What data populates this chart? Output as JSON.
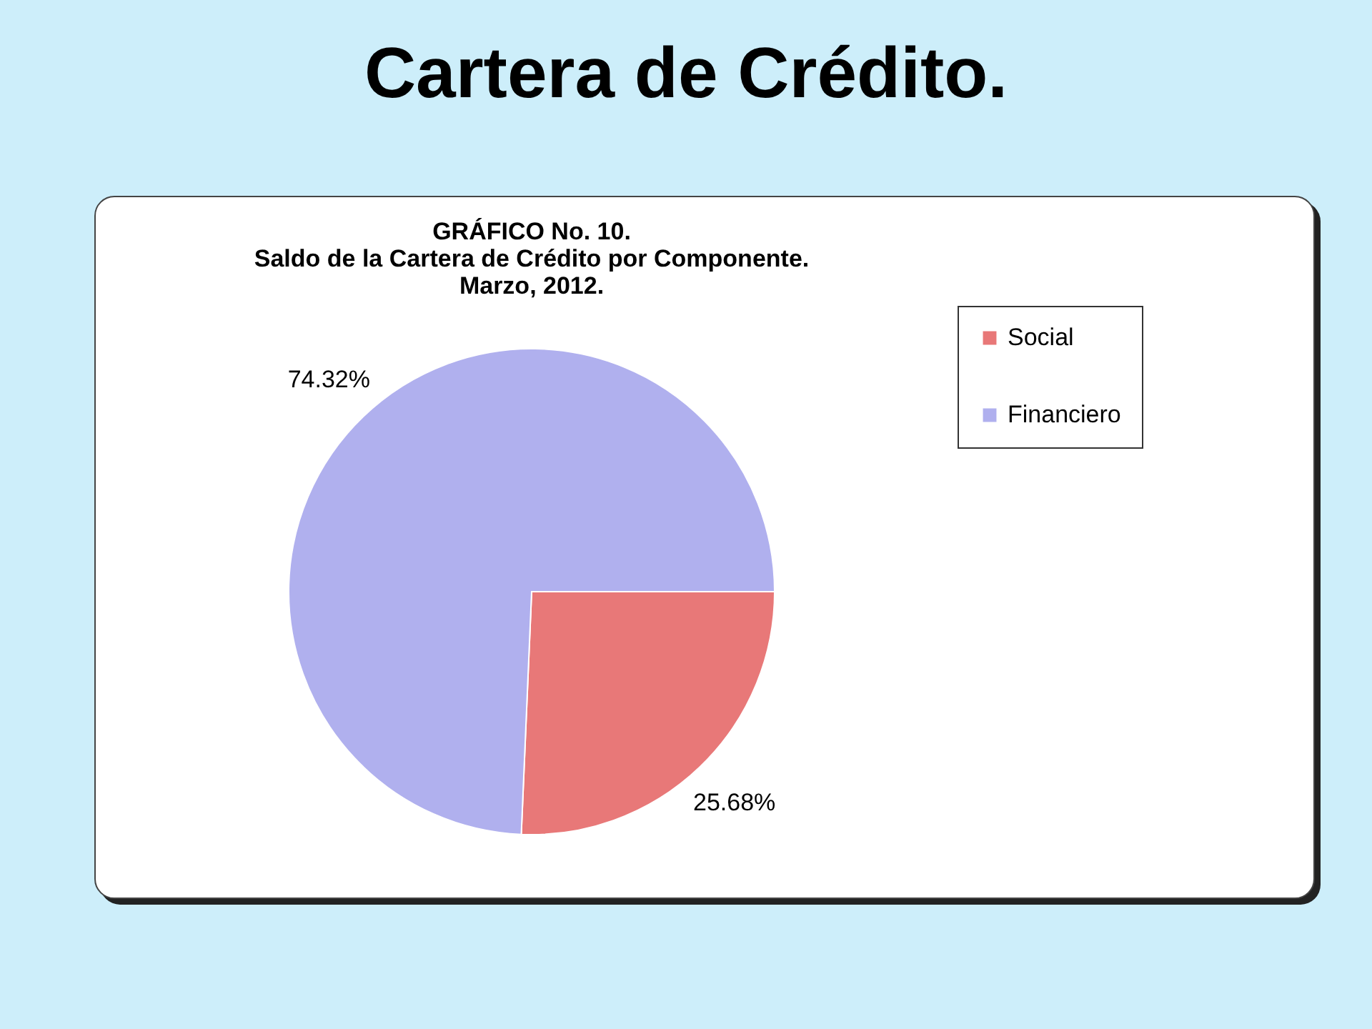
{
  "chart_data": {
    "type": "pie",
    "title": "Cartera de Crédito.",
    "subtitle": "GRÁFICO No. 10.\nSaldo de la Cartera de Crédito por Componente.\nMarzo, 2012.",
    "categories": [
      "Social",
      "Financiero"
    ],
    "values": [
      25.68,
      74.32
    ],
    "colors": [
      "#e87878",
      "#b0b0ee"
    ],
    "value_labels": [
      "25.68%",
      "74.32%"
    ],
    "legend": "right"
  }
}
